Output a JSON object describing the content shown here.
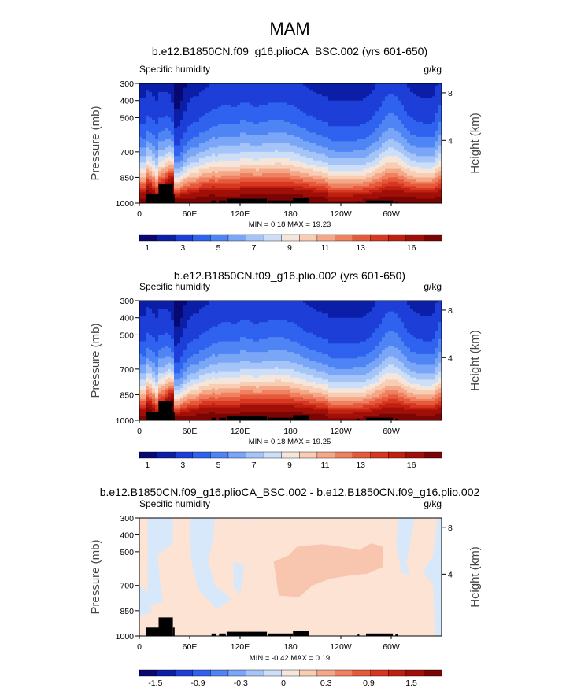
{
  "page_title": "MAM",
  "chart_data": [
    {
      "type": "heatmap",
      "title": "b.e12.B1850CN.f09_g16.plioCA_BSC.002 (yrs 601-650)",
      "variable_label": "Specific humidity",
      "units": "g/kg",
      "ylabel": "Pressure (mb)",
      "y2label": "Height (km)",
      "x_range": [
        0,
        360
      ],
      "xticks": [
        "0",
        "60E",
        "120E",
        "180",
        "120W",
        "60W"
      ],
      "yticks": [
        "300",
        "400",
        "500",
        "700",
        "850",
        "1000"
      ],
      "y2ticks": [
        "8",
        "4"
      ],
      "ylim": [
        300,
        1000
      ],
      "min_max": "MIN =    0.18   MAX =   19.23",
      "min": 0.18,
      "max": 19.23,
      "colorbar_labels": [
        "1",
        "3",
        "5",
        "7",
        "9",
        "11",
        "13",
        "16"
      ],
      "levels": [
        0.5,
        1,
        2,
        3,
        4,
        5,
        6,
        7,
        8,
        9,
        10,
        11,
        12,
        13,
        14,
        16,
        18
      ],
      "pattern": "humidity"
    },
    {
      "type": "heatmap",
      "title": "b.e12.B1850CN.f09_g16.plio.002 (yrs 601-650)",
      "variable_label": "Specific humidity",
      "units": "g/kg",
      "ylabel": "Pressure (mb)",
      "y2label": "Height (km)",
      "x_range": [
        0,
        360
      ],
      "xticks": [
        "0",
        "60E",
        "120E",
        "180",
        "120W",
        "60W"
      ],
      "yticks": [
        "300",
        "400",
        "500",
        "700",
        "850",
        "1000"
      ],
      "y2ticks": [
        "8",
        "4"
      ],
      "ylim": [
        300,
        1000
      ],
      "min_max": "MIN =    0.18   MAX =   19.25",
      "min": 0.18,
      "max": 19.25,
      "colorbar_labels": [
        "1",
        "3",
        "5",
        "7",
        "9",
        "11",
        "13",
        "16"
      ],
      "levels": [
        0.5,
        1,
        2,
        3,
        4,
        5,
        6,
        7,
        8,
        9,
        10,
        11,
        12,
        13,
        14,
        16,
        18
      ],
      "pattern": "humidity"
    },
    {
      "type": "heatmap",
      "title": "b.e12.B1850CN.f09_g16.plioCA_BSC.002 - b.e12.B1850CN.f09_g16.plio.002",
      "variable_label": "Specific humidity",
      "units": "g/kg",
      "ylabel": "Pressure (mb)",
      "y2label": "Height (km)",
      "x_range": [
        0,
        360
      ],
      "xticks": [
        "0",
        "60E",
        "120E",
        "180",
        "120W",
        "60W"
      ],
      "yticks": [
        "300",
        "400",
        "500",
        "700",
        "850",
        "1000"
      ],
      "y2ticks": [
        "8",
        "4"
      ],
      "ylim": [
        300,
        1000
      ],
      "min_max": "MIN =   -0.42   MAX =    0.19",
      "min": -0.42,
      "max": 0.19,
      "colorbar_labels": [
        "-1.5",
        "-0.9",
        "-0.3",
        "0",
        "0.3",
        "0.9",
        "1.5"
      ],
      "pattern": "difference"
    }
  ],
  "colors": {
    "palette": [
      "#080870",
      "#0a1ea8",
      "#1d3fd8",
      "#2f62ee",
      "#4e84f4",
      "#7aa6f7",
      "#a5c4f8",
      "#cddff8",
      "#f5e6dc",
      "#f8cdb4",
      "#f5a888",
      "#ef8060",
      "#e65a3c",
      "#d83822",
      "#c0200f",
      "#a00f08",
      "#7a0505"
    ],
    "diff_light_blue": "#d6e8fa",
    "diff_light_orange": "#fde3d3",
    "diff_orange": "#f8c6ae",
    "topography": "#000000"
  }
}
